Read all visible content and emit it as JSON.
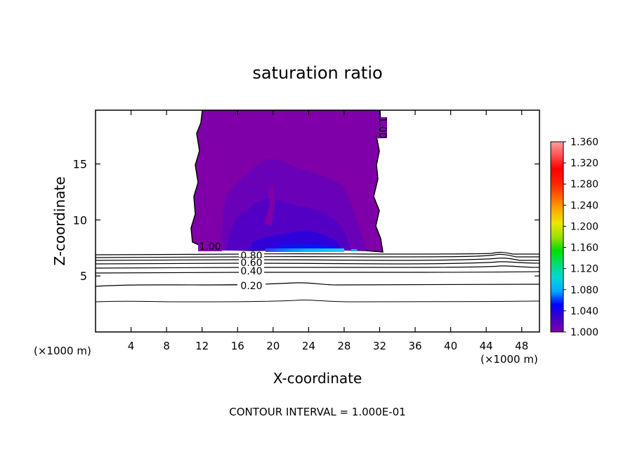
{
  "chart_data": {
    "type": "heatmap",
    "title": "saturation ratio",
    "xlabel": "X-coordinate",
    "ylabel": "Z-coordinate",
    "x_unit_left": "(×1000 m)",
    "x_unit_right": "(×1000 m)",
    "footer": "CONTOUR INTERVAL = 1.000E-01",
    "xlim": [
      0,
      50
    ],
    "ylim": [
      0,
      19.8
    ],
    "x_ticks": [
      4,
      8,
      12,
      16,
      20,
      24,
      28,
      32,
      36,
      40,
      44,
      48
    ],
    "y_ticks": [
      5,
      10,
      15
    ],
    "colorbar": {
      "range": [
        1.0,
        1.36
      ],
      "tick_values": [
        1.0,
        1.04,
        1.08,
        1.12,
        1.16,
        1.2,
        1.24,
        1.28,
        1.32,
        1.36
      ],
      "tick_labels": [
        "1.000",
        "1.040",
        "1.080",
        "1.120",
        "1.160",
        "1.200",
        "1.240",
        "1.280",
        "1.320",
        "1.360"
      ],
      "colors": [
        "#7f00a8",
        "#4400c8",
        "#0000ff",
        "#00aaff",
        "#00d8d8",
        "#00e070",
        "#00e000",
        "#a0e000",
        "#e8e800",
        "#ffaa00",
        "#ff6000",
        "#ff2000",
        "#ff0000",
        "#ff5050",
        "#ffa0a0"
      ]
    },
    "cloud_region": {
      "x_range": [
        11.2,
        32.3
      ],
      "z_range": [
        7.2,
        19.8
      ],
      "peak_value": 1.12,
      "peak_location": [
        26,
        7.3
      ]
    },
    "contour_lines": [
      {
        "label": "1.00",
        "z": 7.0
      },
      {
        "label": "0.80",
        "z": 6.8
      },
      {
        "label": "0.60",
        "z": 6.5
      },
      {
        "label": "0.40",
        "z": 5.8
      },
      {
        "label": "0.20",
        "z": 4.2
      }
    ],
    "extra_contour_levels": [
      {
        "z": 6.3
      },
      {
        "z": 6.0
      },
      {
        "z": 5.5
      },
      {
        "z": 2.8
      }
    ]
  }
}
